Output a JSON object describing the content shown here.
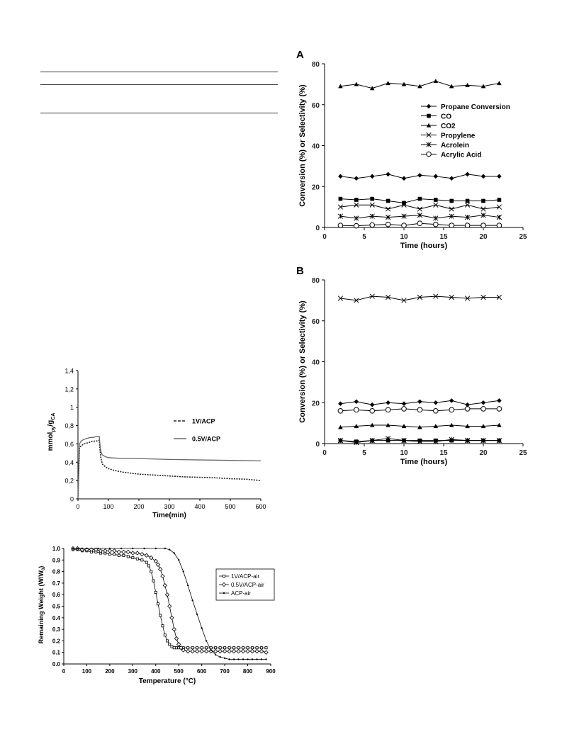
{
  "chart_data": [
    {
      "type": "line",
      "panel_label": "A",
      "xlabel": "Time (hours)",
      "ylabel": "Conversion (%) or Selectivity (%)",
      "xlim": [
        0,
        25
      ],
      "ylim": [
        0,
        80
      ],
      "xticks": [
        0,
        5,
        10,
        15,
        20,
        25
      ],
      "yticks": [
        0,
        20,
        40,
        60,
        80
      ],
      "grid": false,
      "legend_position": "right",
      "x": [
        2,
        4,
        6,
        8,
        10,
        12,
        14,
        16,
        18,
        20,
        22
      ],
      "series": [
        {
          "name": "Propane Conversion",
          "marker": "diamond",
          "values": [
            25,
            24,
            25,
            26,
            24,
            25.5,
            25,
            24,
            26,
            25,
            25
          ]
        },
        {
          "name": "CO",
          "marker": "square",
          "values": [
            14,
            13.5,
            14,
            13,
            12,
            14,
            13.5,
            13,
            13,
            13,
            13.5
          ]
        },
        {
          "name": "CO2",
          "marker": "triangle",
          "values": [
            69,
            70,
            68,
            70.5,
            70,
            69,
            71.5,
            69,
            69.5,
            69,
            70.5
          ]
        },
        {
          "name": "Propylene",
          "marker": "x",
          "values": [
            10,
            11,
            11,
            9,
            11,
            9,
            11,
            9,
            11,
            9,
            10
          ]
        },
        {
          "name": "Acrolein",
          "marker": "asterisk",
          "values": [
            5.5,
            4.5,
            5.5,
            5,
            5.5,
            6,
            4.5,
            5.5,
            5,
            6,
            5
          ]
        },
        {
          "name": "Acrylic Acid",
          "marker": "circle",
          "values": [
            1,
            0.8,
            1.2,
            1.5,
            1,
            2,
            1.5,
            1,
            1,
            1,
            1
          ]
        }
      ]
    },
    {
      "type": "line",
      "panel_label": "B",
      "xlabel": "Time (hours)",
      "ylabel": "Conversion (%) or Selectivity (%)",
      "xlim": [
        0,
        25
      ],
      "ylim": [
        0,
        80
      ],
      "xticks": [
        0,
        5,
        10,
        15,
        20,
        25
      ],
      "yticks": [
        0,
        20,
        40,
        60,
        80
      ],
      "grid": false,
      "x": [
        2,
        4,
        6,
        8,
        10,
        12,
        14,
        16,
        18,
        20,
        22
      ],
      "series": [
        {
          "marker": "diamond",
          "values": [
            19.5,
            20.5,
            19,
            20,
            19.5,
            20.5,
            20,
            21,
            19,
            20,
            21
          ]
        },
        {
          "marker": "square",
          "values": [
            1.5,
            1,
            1.5,
            1.5,
            1.5,
            1.5,
            1.5,
            1.5,
            1.5,
            1.5,
            1.5
          ]
        },
        {
          "marker": "triangle",
          "values": [
            8,
            8.5,
            9,
            9,
            8.5,
            8,
            8.5,
            9,
            8.5,
            8.5,
            9
          ]
        },
        {
          "marker": "x",
          "values": [
            71,
            70,
            72,
            71.5,
            70,
            71.5,
            72,
            71.5,
            71,
            71.5,
            71.5
          ]
        },
        {
          "marker": "asterisk",
          "values": [
            1.5,
            0.5,
            1.5,
            2.5,
            1.5,
            1,
            1,
            2,
            1.5,
            1.5,
            1.5
          ]
        },
        {
          "marker": "circle",
          "values": [
            16,
            16.5,
            16,
            16.5,
            17,
            16.5,
            16,
            16.5,
            17,
            17,
            17
          ]
        }
      ]
    },
    {
      "type": "line",
      "xlabel": "Time(min)",
      "ylabel": "mmol",
      "ylabel_sub1": "py",
      "ylabel_mid": "/g",
      "ylabel_sub2": "CA",
      "xlim": [
        0,
        600
      ],
      "ylim": [
        0,
        1.4
      ],
      "xticks": [
        0,
        100,
        200,
        300,
        400,
        500,
        600
      ],
      "ytick_labels": [
        "0",
        "0,2",
        "0,4",
        "0,6",
        "0,8",
        "1",
        "1,2",
        "1,4"
      ],
      "grid": false,
      "legend_position": "right",
      "series": [
        {
          "name": "1V/ACP",
          "style": "dashed",
          "x": [
            0,
            5,
            10,
            20,
            30,
            40,
            50,
            60,
            70,
            72,
            75,
            80,
            90,
            100,
            120,
            150,
            200,
            250,
            300,
            350,
            400,
            450,
            500,
            550,
            600
          ],
          "values": [
            0,
            0.55,
            0.58,
            0.6,
            0.61,
            0.62,
            0.63,
            0.63,
            0.64,
            0.55,
            0.45,
            0.38,
            0.35,
            0.33,
            0.31,
            0.29,
            0.27,
            0.26,
            0.25,
            0.24,
            0.235,
            0.23,
            0.22,
            0.215,
            0.2
          ]
        },
        {
          "name": "0.5V/ACP",
          "style": "solid",
          "x": [
            0,
            5,
            10,
            20,
            30,
            40,
            50,
            60,
            70,
            72,
            75,
            80,
            90,
            100,
            150,
            200,
            300,
            400,
            500,
            600
          ],
          "values": [
            0,
            0.6,
            0.63,
            0.65,
            0.66,
            0.67,
            0.67,
            0.68,
            0.68,
            0.6,
            0.52,
            0.48,
            0.46,
            0.45,
            0.44,
            0.44,
            0.43,
            0.425,
            0.42,
            0.415
          ]
        }
      ]
    },
    {
      "type": "line",
      "xlabel": "Temperature (°C)",
      "ylabel": "Remaining Weight (W/W",
      "ylabel_sub": "0",
      "ylabel_end": ")",
      "xlim": [
        0,
        900
      ],
      "ylim": [
        0,
        1.0
      ],
      "xticks": [
        0,
        100,
        200,
        300,
        400,
        500,
        600,
        700,
        800,
        900
      ],
      "ytick_labels": [
        "0.0",
        "0.1",
        "0.2",
        "0.3",
        "0.4",
        "0.5",
        "0.6",
        "0.7",
        "0.8",
        "0.9",
        "1.0"
      ],
      "grid": false,
      "legend_position": "right",
      "series": [
        {
          "name": "1V/ACP-air",
          "marker": "square",
          "x": [
            40,
            60,
            80,
            100,
            120,
            140,
            160,
            180,
            200,
            220,
            240,
            260,
            280,
            300,
            320,
            340,
            360,
            370,
            380,
            390,
            400,
            410,
            420,
            430,
            440,
            450,
            460,
            470,
            480,
            490,
            500,
            520,
            540,
            560,
            580,
            600,
            620,
            640,
            660,
            680,
            700,
            720,
            740,
            760,
            780,
            800,
            820,
            840,
            860,
            880
          ],
          "values": [
            0.99,
            0.99,
            0.98,
            0.98,
            0.97,
            0.97,
            0.96,
            0.96,
            0.95,
            0.95,
            0.94,
            0.94,
            0.93,
            0.92,
            0.91,
            0.9,
            0.88,
            0.85,
            0.8,
            0.72,
            0.62,
            0.52,
            0.42,
            0.33,
            0.25,
            0.2,
            0.17,
            0.15,
            0.14,
            0.14,
            0.14,
            0.14,
            0.14,
            0.14,
            0.14,
            0.14,
            0.14,
            0.14,
            0.14,
            0.14,
            0.14,
            0.14,
            0.14,
            0.14,
            0.14,
            0.14,
            0.14,
            0.14,
            0.14,
            0.14
          ]
        },
        {
          "name": "0.5V/ACP-air",
          "marker": "diamond",
          "x": [
            40,
            60,
            80,
            100,
            120,
            140,
            160,
            180,
            200,
            220,
            240,
            260,
            280,
            300,
            320,
            340,
            360,
            380,
            400,
            410,
            420,
            430,
            440,
            450,
            460,
            470,
            480,
            490,
            500,
            510,
            520,
            540,
            560,
            580,
            600,
            620,
            640,
            660,
            680,
            700,
            720,
            740,
            760,
            780,
            800,
            820,
            840,
            860,
            880
          ],
          "values": [
            1.0,
            1.0,
            0.99,
            0.99,
            0.99,
            0.99,
            0.98,
            0.98,
            0.98,
            0.98,
            0.97,
            0.97,
            0.97,
            0.96,
            0.96,
            0.95,
            0.94,
            0.92,
            0.89,
            0.86,
            0.82,
            0.76,
            0.68,
            0.6,
            0.5,
            0.4,
            0.3,
            0.22,
            0.17,
            0.14,
            0.12,
            0.11,
            0.11,
            0.11,
            0.11,
            0.11,
            0.11,
            0.11,
            0.11,
            0.11,
            0.11,
            0.11,
            0.11,
            0.11,
            0.11,
            0.11,
            0.11,
            0.11,
            0.1
          ]
        },
        {
          "name": "ACP-air",
          "marker": "dot",
          "x": [
            40,
            60,
            80,
            100,
            150,
            200,
            250,
            300,
            350,
            400,
            440,
            460,
            480,
            500,
            520,
            540,
            560,
            580,
            600,
            620,
            640,
            660,
            680,
            700,
            720,
            740,
            760,
            780,
            800,
            820,
            840,
            860,
            880
          ],
          "values": [
            1.0,
            1.0,
            1.0,
            1.0,
            1.0,
            1.0,
            1.0,
            1.0,
            1.0,
            1.0,
            1.0,
            0.99,
            0.96,
            0.9,
            0.8,
            0.68,
            0.55,
            0.43,
            0.31,
            0.2,
            0.12,
            0.08,
            0.06,
            0.05,
            0.04,
            0.04,
            0.04,
            0.04,
            0.04,
            0.04,
            0.04,
            0.04,
            0.04
          ]
        }
      ]
    }
  ]
}
